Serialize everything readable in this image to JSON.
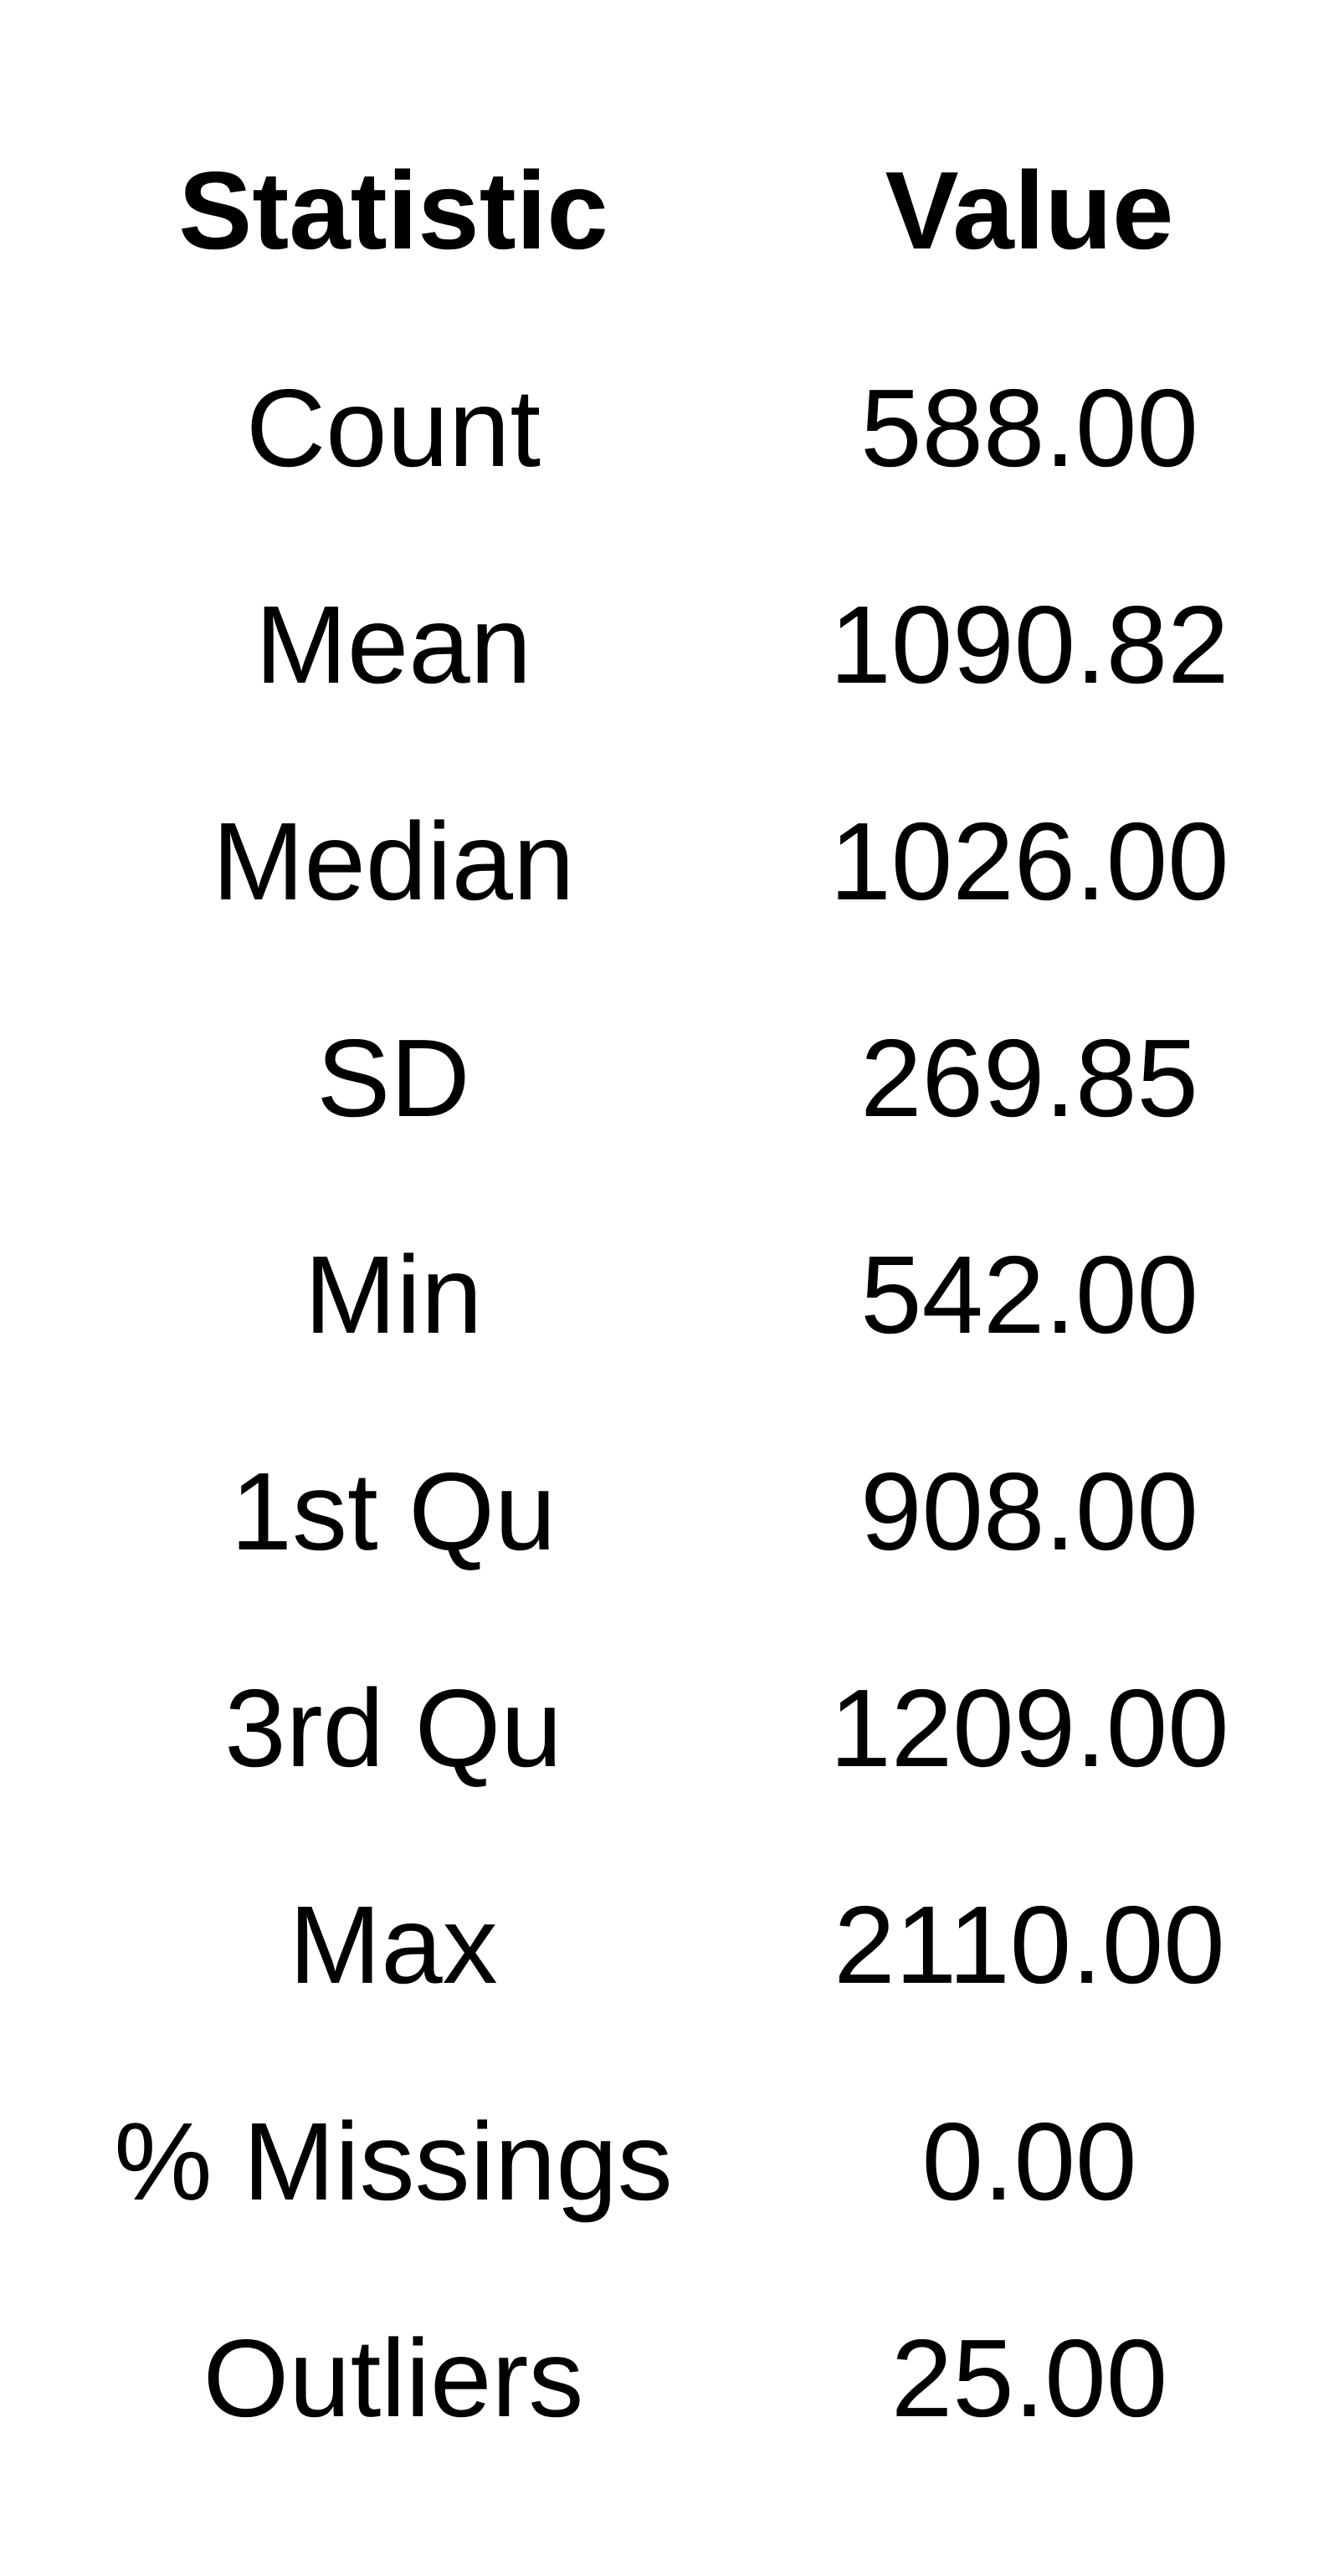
{
  "chart_data": {
    "type": "table",
    "columns": [
      "Statistic",
      "Value"
    ],
    "rows": [
      {
        "statistic": "Count",
        "value": "588.00"
      },
      {
        "statistic": "Mean",
        "value": "1090.82"
      },
      {
        "statistic": "Median",
        "value": "1026.00"
      },
      {
        "statistic": "SD",
        "value": "269.85"
      },
      {
        "statistic": "Min",
        "value": "542.00"
      },
      {
        "statistic": "1st Qu",
        "value": "908.00"
      },
      {
        "statistic": "3rd Qu",
        "value": "1209.00"
      },
      {
        "statistic": "Max",
        "value": "2110.00"
      },
      {
        "statistic": "% Missings",
        "value": "0.00"
      },
      {
        "statistic": "Outliers",
        "value": "25.00"
      }
    ]
  }
}
